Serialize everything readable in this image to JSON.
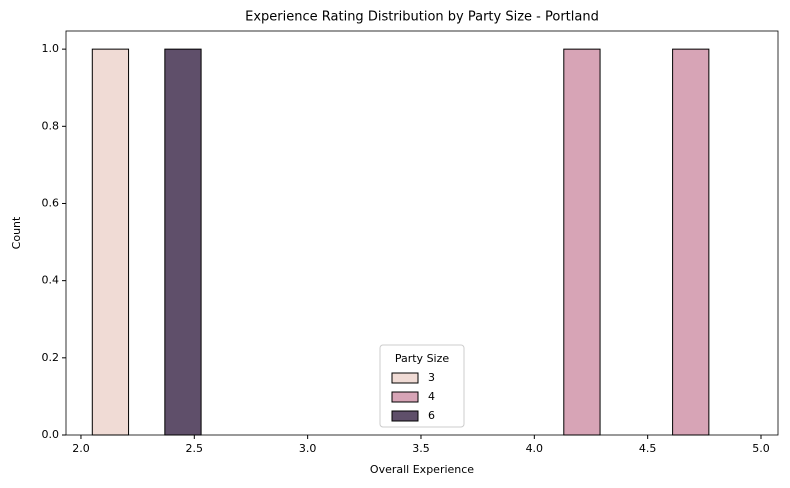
{
  "chart_data": {
    "type": "histogram",
    "title": "Experience Rating Distribution by Party Size - Portland",
    "x_label": "Overall Experience",
    "y_label": "Count",
    "bins": [
      2.05,
      2.53,
      3.01,
      3.49,
      3.97,
      4.45,
      4.93
    ],
    "series": [
      {
        "name": "3",
        "color": "#f0dbd5",
        "values": [
          1,
          0,
          0,
          0,
          0,
          0
        ]
      },
      {
        "name": "4",
        "color": "#d7a4b6",
        "values": [
          0,
          0,
          0,
          0,
          1,
          1
        ]
      },
      {
        "name": "6",
        "color": "#5f4f6a",
        "values": [
          1,
          0,
          0,
          0,
          0,
          0
        ]
      }
    ],
    "legend_title": "Party Size",
    "legend": "lower center",
    "xlim": [
      1.934,
      5.075
    ],
    "xticks": [
      {
        "value": 2,
        "label": "2.0"
      },
      2.5,
      {
        "value": 3,
        "label": "3.0"
      },
      3.5,
      {
        "value": 4,
        "label": "4.0"
      },
      4.5,
      {
        "value": 5,
        "label": "5.0"
      }
    ],
    "ylim": [
      0,
      1.047
    ],
    "yticks": [
      {
        "value": 0,
        "label": "0.0"
      },
      0.2,
      0.4,
      0.6,
      0.8,
      {
        "value": 1,
        "label": "1.0"
      }
    ]
  }
}
